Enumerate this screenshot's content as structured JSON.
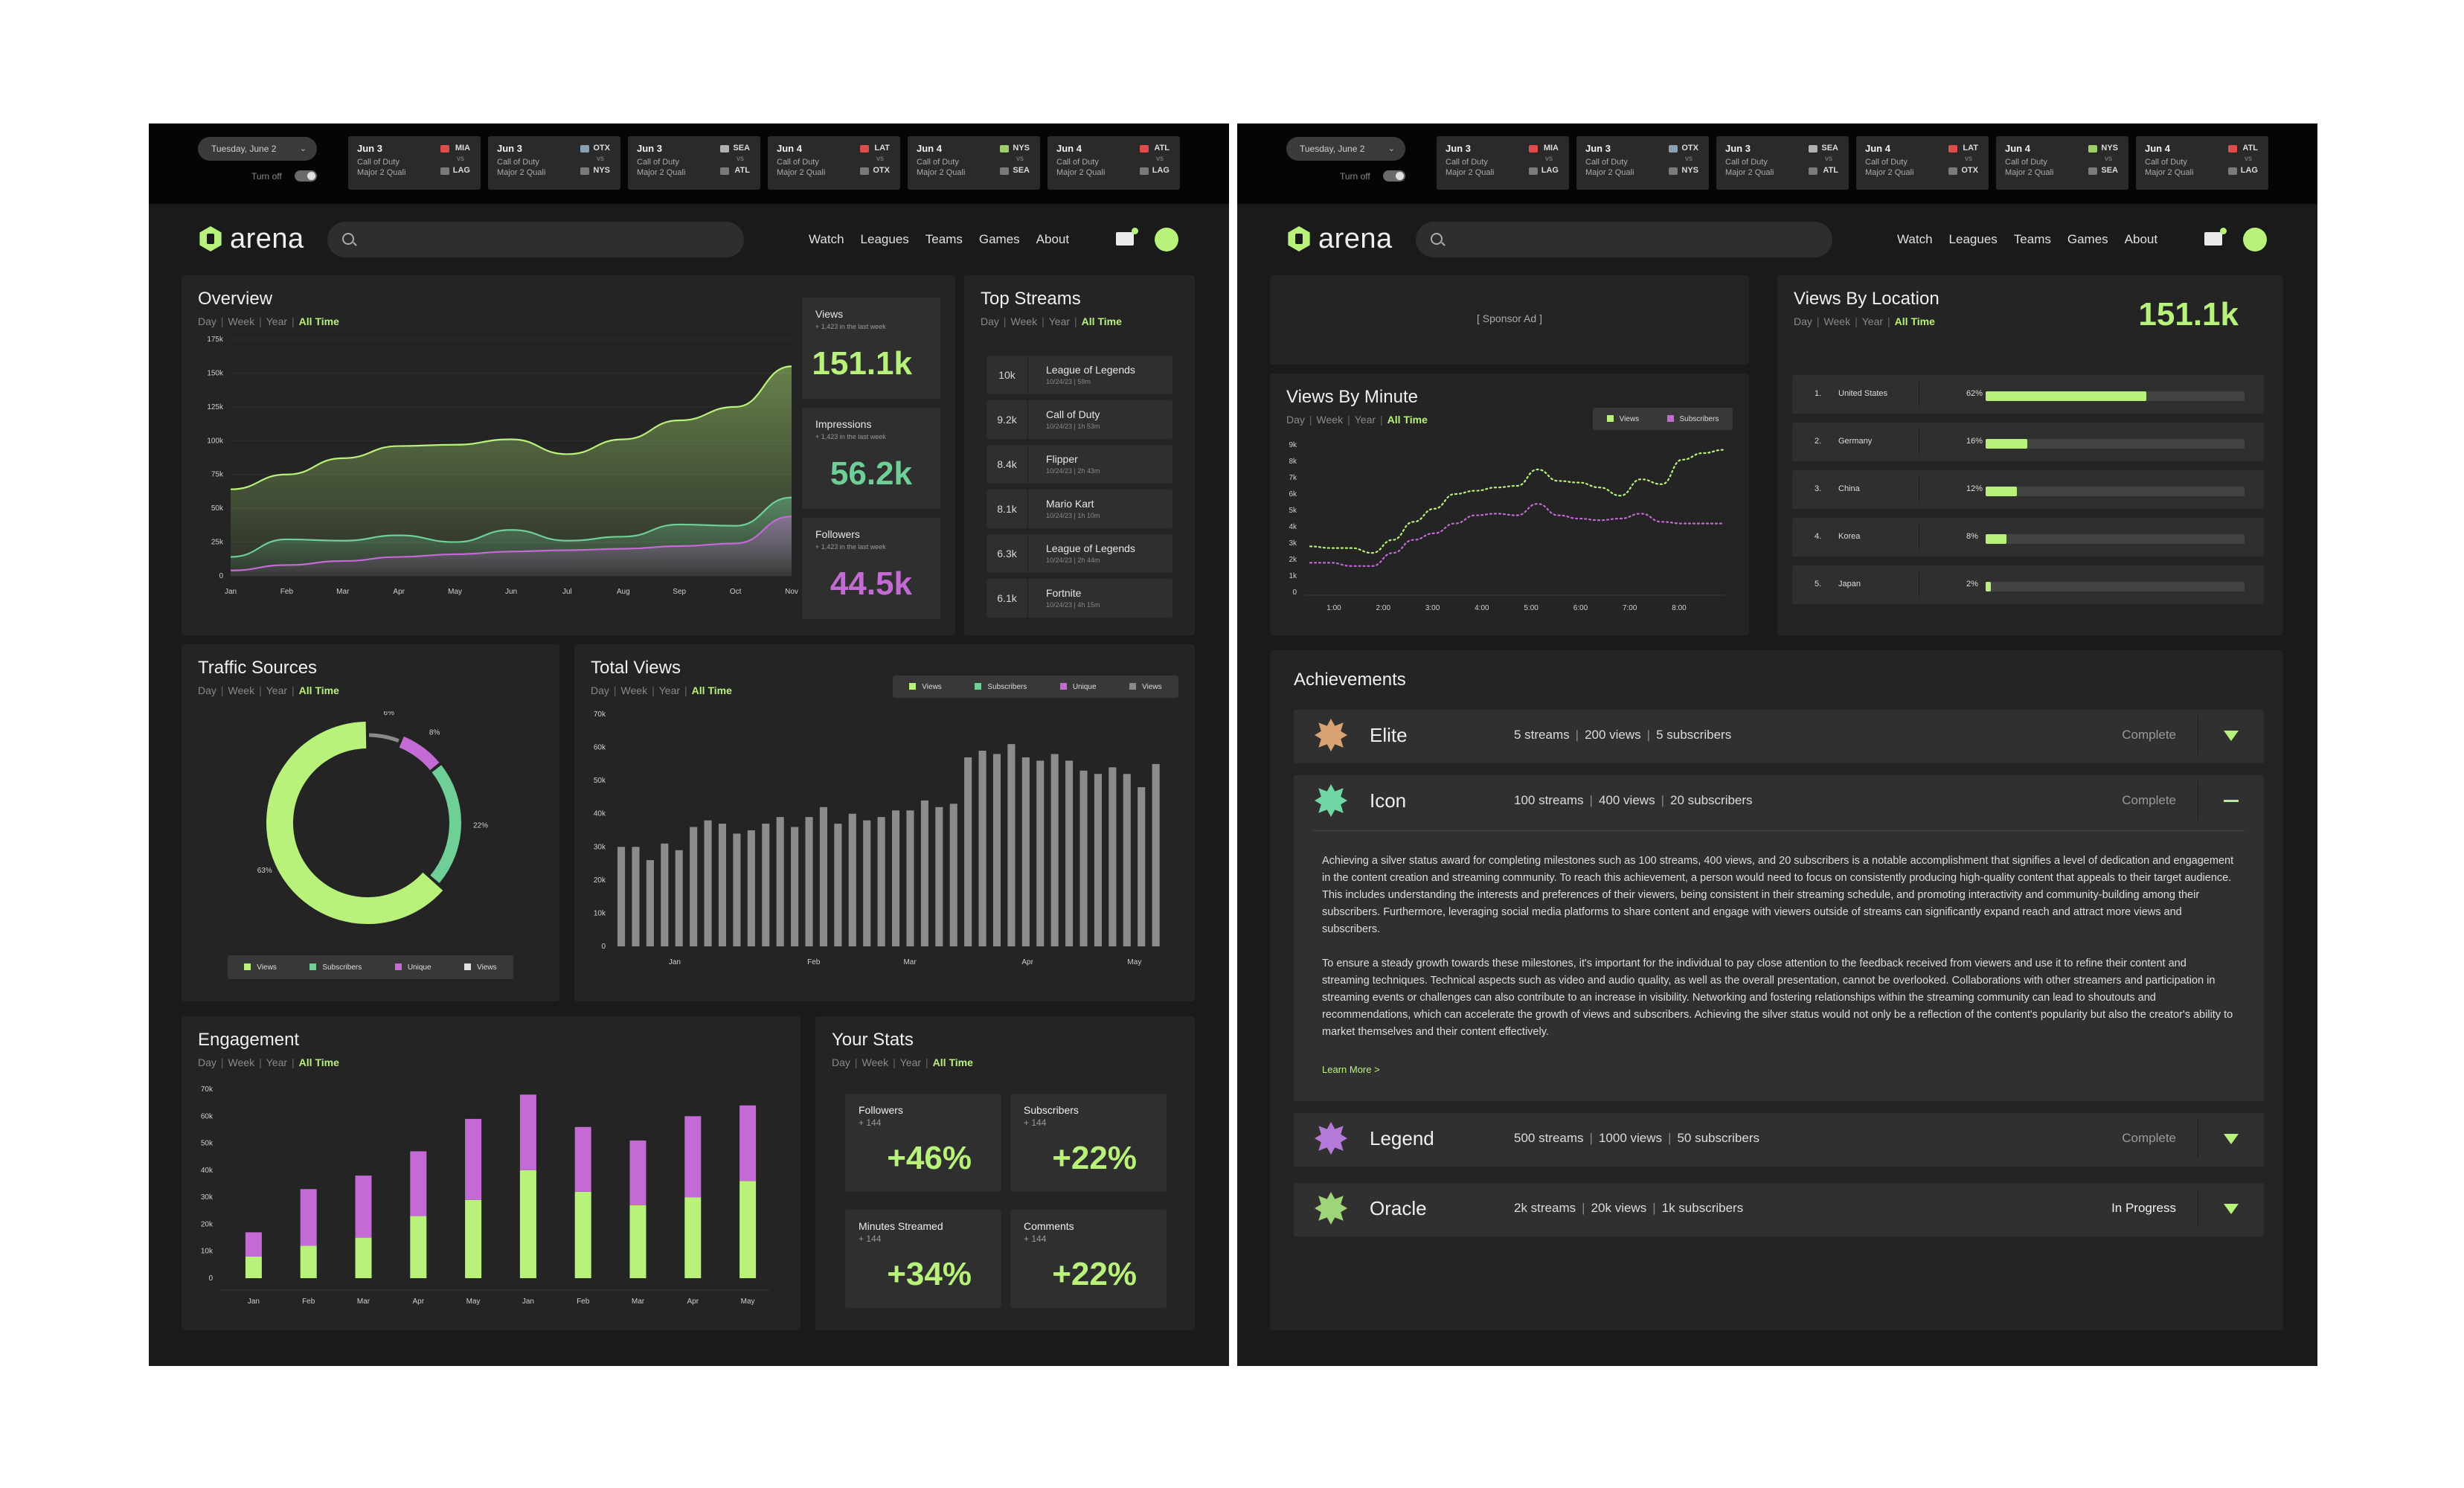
{
  "colors": {
    "accent": "#b8f27a",
    "teal": "#6fcf97",
    "purple": "#c36ad4",
    "gray": "#8a8a8a",
    "bg": "#1a1a1a",
    "card": "#242424"
  },
  "ticker": {
    "date": "Tuesday, June 2",
    "turn_off": "Turn off",
    "matches": [
      {
        "date": "Jun 3",
        "game": "Call of Duty",
        "event": "Major 2 Quali",
        "team_a": "MIA",
        "vs": "vs",
        "team_b": "LAG"
      },
      {
        "date": "Jun 3",
        "game": "Call of Duty",
        "event": "Major 2 Quali",
        "team_a": "OTX",
        "vs": "vs",
        "team_b": "NYS"
      },
      {
        "date": "Jun 3",
        "game": "Call of Duty",
        "event": "Major 2 Quali",
        "team_a": "SEA",
        "vs": "vs",
        "team_b": "ATL"
      },
      {
        "date": "Jun 4",
        "game": "Call of Duty",
        "event": "Major 2 Quali",
        "team_a": "LAT",
        "vs": "vs",
        "team_b": "OTX"
      },
      {
        "date": "Jun 4",
        "game": "Call of Duty",
        "event": "Major 2 Quali",
        "team_a": "NYS",
        "vs": "vs",
        "team_b": "SEA"
      },
      {
        "date": "Jun 4",
        "game": "Call of Duty",
        "event": "Major 2 Quali",
        "team_a": "ATL",
        "vs": "vs",
        "team_b": "LAG"
      }
    ]
  },
  "nav": {
    "logo": "arena",
    "links": [
      "Watch",
      "Leagues",
      "Teams",
      "Games",
      "About"
    ]
  },
  "timeframes": [
    "Day",
    "Week",
    "Year",
    "All Time"
  ],
  "overview": {
    "title": "Overview",
    "stats": [
      {
        "label": "Views",
        "sub": "+ 1,423 in the last week",
        "value": "151.1k",
        "color": "#b8f27a"
      },
      {
        "label": "Impressions",
        "sub": "+ 1,423 in the last week",
        "value": "56.2k",
        "color": "#6fcf97"
      },
      {
        "label": "Followers",
        "sub": "+ 1,423 in the last week",
        "value": "44.5k",
        "color": "#c36ad4"
      }
    ]
  },
  "top_streams": {
    "title": "Top Streams",
    "items": [
      {
        "count": "10k",
        "game": "League of Legends",
        "meta": "10/24/23 | 59m"
      },
      {
        "count": "9.2k",
        "game": "Call of Duty",
        "meta": "10/24/23 | 1h 53m"
      },
      {
        "count": "8.4k",
        "game": "Flipper",
        "meta": "10/24/23 | 2h 43m"
      },
      {
        "count": "8.1k",
        "game": "Mario Kart",
        "meta": "10/24/23 | 1h 10m"
      },
      {
        "count": "6.3k",
        "game": "League of Legends",
        "meta": "10/24/23 | 2h 44m"
      },
      {
        "count": "6.1k",
        "game": "Fortnite",
        "meta": "10/24/23 | 4h 15m"
      }
    ]
  },
  "traffic": {
    "title": "Traffic Sources",
    "legend": [
      "Views",
      "Subscribers",
      "Unique",
      "Views"
    ]
  },
  "total_views": {
    "title": "Total Views",
    "legend": [
      "Views",
      "Subscribers",
      "Unique",
      "Views"
    ]
  },
  "engagement": {
    "title": "Engagement"
  },
  "your_stats": {
    "title": "Your Stats",
    "items": [
      {
        "label": "Followers",
        "change": "+ 144",
        "value": "+46%"
      },
      {
        "label": "Subscribers",
        "change": "+ 144",
        "value": "+22%"
      },
      {
        "label": "Minutes Streamed",
        "change": "+ 144",
        "value": "+34%"
      },
      {
        "label": "Comments",
        "change": "+ 144",
        "value": "+22%"
      }
    ]
  },
  "sponsor": {
    "label": "[ Sponsor Ad ]"
  },
  "views_by_minute": {
    "title": "Views By Minute",
    "legend": [
      "Views",
      "Subscribers"
    ]
  },
  "views_by_location": {
    "title": "Views By Location",
    "total": "151.1k",
    "rows": [
      {
        "rank": "1.",
        "country": "United States",
        "pct_label": "62%",
        "pct": 0.62
      },
      {
        "rank": "2.",
        "country": "Germany",
        "pct_label": "16%",
        "pct": 0.16
      },
      {
        "rank": "3.",
        "country": "China",
        "pct_label": "12%",
        "pct": 0.12
      },
      {
        "rank": "4.",
        "country": "Korea",
        "pct_label": "8%",
        "pct": 0.08
      },
      {
        "rank": "5.",
        "country": "Japan",
        "pct_label": "2%",
        "pct": 0.02
      }
    ]
  },
  "achievements": {
    "title": "Achievements",
    "items": [
      {
        "name": "Elite",
        "streams": "5 streams",
        "views": "200 views",
        "subs": "5 subscribers",
        "status": "Complete",
        "medal_color": "#d9a273"
      },
      {
        "name": "Icon",
        "streams": "100 streams",
        "views": "400 views",
        "subs": "20 subscribers",
        "status": "Complete",
        "medal_color": "#6fd6a4"
      },
      {
        "name": "Legend",
        "streams": "500 streams",
        "views": "1000 views",
        "subs": "50 subscribers",
        "status": "Complete",
        "medal_color": "#b57ad9"
      },
      {
        "name": "Oracle",
        "streams": "2k streams",
        "views": "20k views",
        "subs": "1k subscribers",
        "status": "In Progress",
        "medal_color": "#9ed47a"
      }
    ],
    "detail_p1": "Achieving a silver status award for completing milestones such as 100 streams, 400 views, and 20 subscribers is a notable accomplishment that signifies a level of dedication and engagement in the content creation and streaming community. To reach this achievement, a person would need to focus on consistently producing high-quality content that appeals to their target audience. This includes understanding the interests and preferences of their viewers, being consistent in their streaming schedule, and promoting interactivity and community-building among their subscribers. Furthermore, leveraging social media platforms to share content and engage with viewers outside of streams can significantly expand reach and attract more views and subscribers.",
    "detail_p2": "To ensure a steady growth towards these milestones, it's important for the individual to pay close attention to the feedback received from viewers and use it to refine their content and streaming techniques. Technical aspects such as video and audio quality, as well as the overall presentation, cannot be overlooked. Collaborations with other streamers and participation in streaming events or challenges can also contribute to an increase in visibility. Networking and fostering relationships within the streaming community can lead to shoutouts and recommendations, which can accelerate the growth of views and subscribers. Achieving the silver status would not only be a reflection of the content's popularity but also the creator's ability to market themselves and their content effectively.",
    "learn_more": "Learn More >"
  },
  "chart_data": [
    {
      "type": "area",
      "title": "Overview",
      "x": [
        "Jan",
        "Feb",
        "Mar",
        "Apr",
        "May",
        "Jun",
        "Jul",
        "Aug",
        "Sep",
        "Oct",
        "Nov"
      ],
      "ylim": [
        0,
        175000
      ],
      "yticks": [
        "0",
        "25k",
        "50k",
        "75k",
        "100k",
        "125k",
        "150k",
        "175k"
      ],
      "series": [
        {
          "name": "Views",
          "color": "#b8f27a",
          "values": [
            64000,
            75000,
            87000,
            96000,
            97000,
            101000,
            90000,
            101000,
            115000,
            125000,
            155000
          ]
        },
        {
          "name": "Impressions",
          "color": "#6fcf97",
          "values": [
            14000,
            27000,
            26000,
            30000,
            25000,
            34000,
            26000,
            29000,
            38000,
            37000,
            58000
          ]
        },
        {
          "name": "Followers",
          "color": "#c36ad4",
          "values": [
            4000,
            8000,
            11000,
            14000,
            16000,
            18000,
            19000,
            20000,
            22000,
            24000,
            44000
          ]
        }
      ]
    },
    {
      "type": "pie",
      "title": "Traffic Sources",
      "labels": [
        "63%",
        "22%",
        "8%",
        "6%"
      ],
      "values": [
        63,
        22,
        8,
        6
      ],
      "colors": [
        "#b8f27a",
        "#6fcf97",
        "#c36ad4",
        "#8a8a8a"
      ]
    },
    {
      "type": "bar",
      "title": "Total Views",
      "x_labels": [
        "Jan",
        "Feb",
        "Mar",
        "Apr",
        "May"
      ],
      "ylim": [
        0,
        70000
      ],
      "yticks": [
        "0",
        "10k",
        "20k",
        "30k",
        "40k",
        "50k",
        "60k",
        "70k"
      ],
      "values": [
        30000,
        30000,
        26000,
        31000,
        29000,
        36000,
        38000,
        37000,
        34000,
        35000,
        37000,
        39000,
        36000,
        39000,
        42000,
        37000,
        40000,
        38000,
        39000,
        41000,
        41000,
        44000,
        42000,
        43000,
        57000,
        59000,
        58000,
        61000,
        57000,
        56000,
        58000,
        56000,
        53000,
        52000,
        54000,
        52000,
        48000,
        55000
      ]
    },
    {
      "type": "bar",
      "title": "Engagement",
      "categories": [
        "Jan",
        "Feb",
        "Mar",
        "Apr",
        "May",
        "Jan",
        "Feb",
        "Mar",
        "Apr",
        "May"
      ],
      "ylim": [
        0,
        70000
      ],
      "yticks": [
        "0",
        "10k",
        "20k",
        "30k",
        "40k",
        "50k",
        "60k",
        "70k"
      ],
      "series": [
        {
          "name": "Green",
          "color": "#b8f27a",
          "values": [
            8000,
            12000,
            15000,
            23000,
            29000,
            40000,
            32000,
            27000,
            30000,
            36000
          ]
        },
        {
          "name": "Purple",
          "color": "#c36ad4",
          "values": [
            9000,
            21000,
            23000,
            24000,
            30000,
            28000,
            24000,
            24000,
            30000,
            28000
          ]
        }
      ]
    },
    {
      "type": "line",
      "title": "Views By Minute",
      "x_labels": [
        "1:00",
        "2:00",
        "3:00",
        "4:00",
        "5:00",
        "6:00",
        "7:00",
        "8:00"
      ],
      "ylim": [
        0,
        9000
      ],
      "yticks": [
        "0",
        "1k",
        "2k",
        "3k",
        "4k",
        "5k",
        "6k",
        "7k",
        "8k",
        "9k"
      ],
      "series": [
        {
          "name": "Views",
          "color": "#b8f27a",
          "values": [
            2800,
            2700,
            2700,
            2400,
            3200,
            4300,
            5100,
            6000,
            6200,
            6400,
            6500,
            7500,
            6800,
            6700,
            6400,
            5900,
            6900,
            6600,
            8100,
            8500,
            8700
          ]
        },
        {
          "name": "Subscribers",
          "color": "#c36ad4",
          "values": [
            1800,
            1800,
            1600,
            1600,
            2400,
            3200,
            3600,
            4200,
            4700,
            4800,
            4700,
            5400,
            4700,
            4500,
            4400,
            4500,
            4800,
            4300,
            4200,
            4200,
            4200
          ]
        }
      ]
    }
  ]
}
